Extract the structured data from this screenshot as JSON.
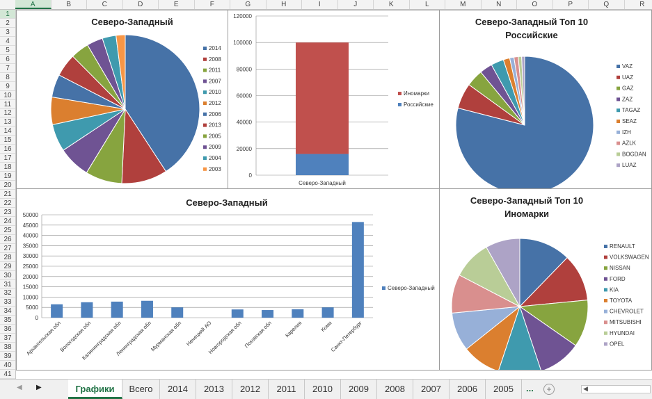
{
  "sheet": {
    "columns": [
      "A",
      "B",
      "C",
      "D",
      "E",
      "F",
      "G",
      "H",
      "I",
      "J",
      "K",
      "L",
      "M",
      "N",
      "O",
      "P",
      "Q",
      "R"
    ],
    "rows": [
      "1",
      "2",
      "3",
      "4",
      "5",
      "6",
      "7",
      "8",
      "9",
      "10",
      "11",
      "12",
      "13",
      "14",
      "15",
      "16",
      "17",
      "18",
      "19",
      "20",
      "21",
      "22",
      "23",
      "24",
      "25",
      "26",
      "27",
      "28",
      "29",
      "30",
      "31",
      "32",
      "33",
      "34",
      "35",
      "36",
      "37",
      "38",
      "39",
      "40",
      "41"
    ],
    "selected_column": "A",
    "selected_row": "1"
  },
  "tabs": {
    "items": [
      "Графики",
      "Всего",
      "2014",
      "2013",
      "2012",
      "2011",
      "2010",
      "2009",
      "2008",
      "2007",
      "2006",
      "2005"
    ],
    "active": "Графики",
    "more": "...",
    "add_icon": "plus-circle-icon"
  },
  "colors": {
    "excel_green": "#217346",
    "palette": [
      "#4672a7",
      "#b0403d",
      "#87a43f",
      "#6f5393",
      "#3f9aae",
      "#db7f2f",
      "#97b0d8",
      "#d98f8e",
      "#b9cd97",
      "#ada3c6"
    ]
  },
  "chart_data": [
    {
      "id": "nw-years-pie",
      "type": "pie",
      "title": "Северо-Западный",
      "categories": [
        "2014",
        "2008",
        "2011",
        "2007",
        "2010",
        "2012",
        "2006",
        "2013",
        "2005",
        "2009",
        "2004",
        "2003"
      ],
      "values": [
        41,
        10,
        8,
        7,
        6,
        6,
        5,
        5,
        4,
        3.5,
        3,
        2
      ],
      "colors": [
        "#4672a7",
        "#b0403d",
        "#87a43f",
        "#6f5393",
        "#3f9aae",
        "#db7f2f",
        "#4672a7",
        "#b0403d",
        "#87a43f",
        "#6f5393",
        "#3f9aae",
        "#f79646"
      ],
      "legend": "right"
    },
    {
      "id": "nw-stacked-bar",
      "type": "bar",
      "stacked": true,
      "title": "",
      "categories": [
        "Северо-Западный"
      ],
      "series": [
        {
          "name": "Российские",
          "values": [
            16000
          ],
          "color": "#4f81bd"
        },
        {
          "name": "Иномарки",
          "values": [
            84000
          ],
          "color": "#c0504d"
        }
      ],
      "ylim": [
        0,
        120000
      ],
      "yticks": [
        "0",
        "20000",
        "40000",
        "60000",
        "80000",
        "100000",
        "120000"
      ],
      "legend_order": [
        "Иномарки",
        "Российские"
      ],
      "grid": true,
      "legend": "right"
    },
    {
      "id": "nw-top10-russian",
      "type": "pie",
      "title": "Северо-Западный Топ 10 Российские",
      "title_lines": [
        "Северо-Западный Топ 10",
        "Российские"
      ],
      "categories": [
        "VAZ",
        "UAZ",
        "GAZ",
        "ZAZ",
        "TAGAZ",
        "SEAZ",
        "IZH",
        "AZLK",
        "BOGDAN",
        "LUAZ"
      ],
      "values": [
        79,
        6,
        4,
        3,
        3,
        1.5,
        1,
        1,
        0.8,
        0.7
      ],
      "colors": [
        "#4672a7",
        "#b0403d",
        "#87a43f",
        "#6f5393",
        "#3f9aae",
        "#db7f2f",
        "#97b0d8",
        "#d98f8e",
        "#b9cd97",
        "#ada3c6"
      ],
      "legend": "right"
    },
    {
      "id": "nw-regions-bar",
      "type": "bar",
      "title": "Северо-Западный",
      "categories": [
        "Архангельская обл",
        "Вологодская обл",
        "Калининградская обл",
        "Ленинградская обл",
        "Мурманская обл",
        "Ненецкий АО",
        "Новгородская обл",
        "Псковская обл",
        "Карелия",
        "Коми",
        "Санкт-Петербург"
      ],
      "series": [
        {
          "name": "Северо-Западный",
          "values": [
            6500,
            7500,
            7800,
            8200,
            5000,
            0,
            4000,
            3700,
            4100,
            5000,
            46500
          ],
          "color": "#4f81bd"
        }
      ],
      "ylim": [
        0,
        50000
      ],
      "yticks": [
        "0",
        "5000",
        "10000",
        "15000",
        "20000",
        "25000",
        "30000",
        "35000",
        "40000",
        "45000",
        "50000"
      ],
      "grid": true,
      "legend": "right"
    },
    {
      "id": "nw-top10-foreign",
      "type": "pie",
      "title": "Северо-Западный Топ 10 Иномарки",
      "title_lines": [
        "Северо-Западный Топ 10",
        "Иномарки"
      ],
      "categories": [
        "RENAULT",
        "VOLKSWAGEN",
        "NISSAN",
        "FORD",
        "KIA",
        "TOYOTA",
        "CHEVROLET",
        "MITSUBISHI",
        "HYUNDAI",
        "OPEL"
      ],
      "values": [
        12,
        11,
        11,
        10,
        10,
        9,
        9,
        9,
        9,
        8
      ],
      "colors": [
        "#4672a7",
        "#b0403d",
        "#87a43f",
        "#6f5393",
        "#3f9aae",
        "#db7f2f",
        "#97b0d8",
        "#d98f8e",
        "#b9cd97",
        "#ada3c6"
      ],
      "legend": "right"
    }
  ]
}
